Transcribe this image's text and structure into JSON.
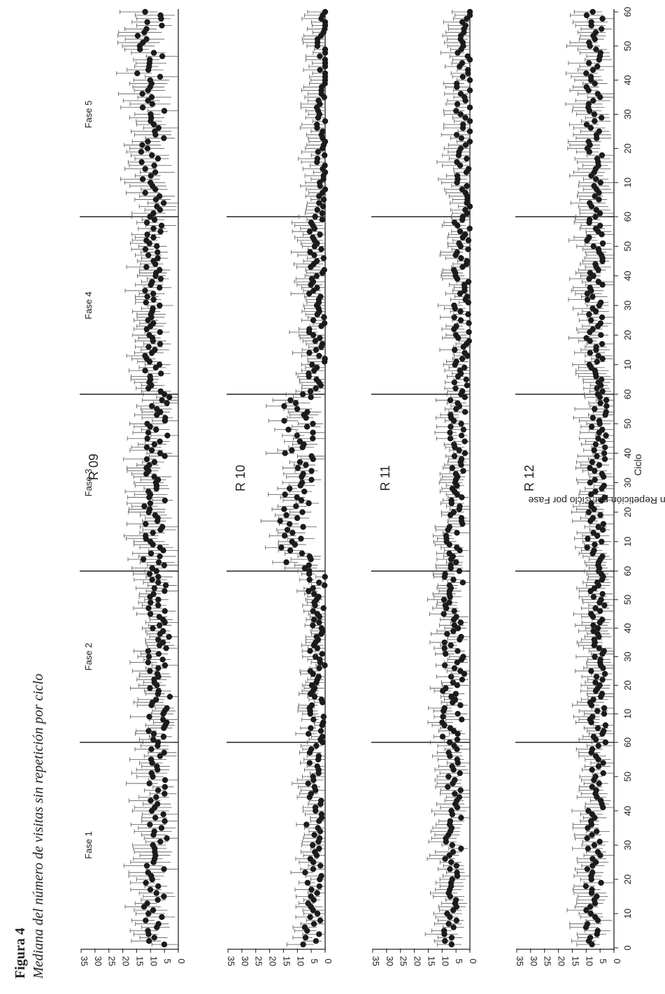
{
  "figure": {
    "label": "Figura 4",
    "caption": "Mediana del número de visitas sin repetición por ciclo"
  },
  "chart_data": {
    "type": "scatter",
    "xlabel": "Ciclo",
    "ylabel": "Mediana del No. de Visitas Sin Repetición por Ciclo por Fase",
    "ylim": [
      0,
      35
    ],
    "yticks": [
      0,
      5,
      10,
      15,
      20,
      25,
      30,
      35
    ],
    "xlim_per_phase": [
      0,
      60
    ],
    "xticks": [
      0,
      10,
      20,
      30,
      40,
      50,
      60
    ],
    "phases": [
      "Fase 1",
      "Fase 2",
      "Fase 3",
      "Fase 4",
      "Fase 5"
    ],
    "error_bars": true,
    "panels": [
      {
        "name": "R 09",
        "phases": [
          {
            "phase": "Fase 1",
            "mean": 9,
            "spread": 4,
            "err": 7
          },
          {
            "phase": "Fase 2",
            "mean": 7,
            "spread": 4,
            "err": 6
          },
          {
            "phase": "Fase 3",
            "mean": 9,
            "spread": 4,
            "err": 7
          },
          {
            "phase": "Fase 4",
            "mean": 9,
            "spread": 3,
            "err": 6
          },
          {
            "phase": "Fase 5",
            "mean": 10,
            "spread": 5,
            "err": 8
          }
        ]
      },
      {
        "name": "R 10",
        "phases": [
          {
            "phase": "Fase 1",
            "mean": 5,
            "spread": 3,
            "err": 5
          },
          {
            "phase": "Fase 2",
            "mean": 3,
            "spread": 3,
            "err": 4
          },
          {
            "phase": "Fase 3",
            "mean": 11,
            "spread": 6,
            "err": 6
          },
          {
            "phase": "Fase 4",
            "mean": 3,
            "spread": 3,
            "err": 6
          },
          {
            "phase": "Fase 5",
            "mean": 1,
            "spread": 2,
            "err": 6
          }
        ]
      },
      {
        "name": "R 11",
        "phases": [
          {
            "phase": "Fase 1",
            "mean": 7,
            "spread": 3,
            "err": 6
          },
          {
            "phase": "Fase 2",
            "mean": 6,
            "spread": 4,
            "err": 5
          },
          {
            "phase": "Fase 3",
            "mean": 6,
            "spread": 3,
            "err": 5
          },
          {
            "phase": "Fase 4",
            "mean": 3,
            "spread": 3,
            "err": 5
          },
          {
            "phase": "Fase 5",
            "mean": 2,
            "spread": 3,
            "err": 6
          }
        ]
      },
      {
        "name": "R 12",
        "phases": [
          {
            "phase": "Fase 1",
            "mean": 8,
            "spread": 3,
            "err": 6
          },
          {
            "phase": "Fase 2",
            "mean": 6,
            "spread": 3,
            "err": 6
          },
          {
            "phase": "Fase 3",
            "mean": 7,
            "spread": 3,
            "err": 6
          },
          {
            "phase": "Fase 4",
            "mean": 7,
            "spread": 3,
            "err": 6
          },
          {
            "phase": "Fase 5",
            "mean": 7,
            "spread": 3,
            "err": 7
          }
        ]
      }
    ]
  }
}
